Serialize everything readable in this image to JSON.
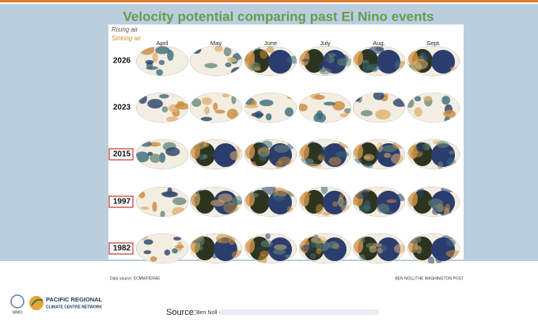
{
  "title": "Velocity potential comparing past El Nino events",
  "legend": {
    "rising": "Rising air",
    "sinking": "Sinking air"
  },
  "months": [
    "April",
    "May",
    "June",
    "July",
    "Aug.",
    "Sept."
  ],
  "years": [
    "2026",
    "2023",
    "2015",
    "1997",
    "1982"
  ],
  "footer": {
    "data_source": "Data source: ECMWF/ERA5",
    "credit": "BEN NOLL/THE WASHINGTON POST",
    "source_label": "Source:",
    "source_author": "Ben Noll -"
  },
  "logos": {
    "wmo": "WMO",
    "network_line1": "PACIFIC REGIONAL",
    "network_line2": "CLIMATE CENTRE NETWORK"
  }
}
